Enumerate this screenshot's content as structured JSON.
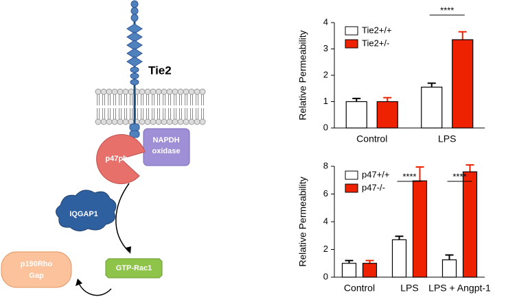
{
  "diagram": {
    "receptor": "Tie2",
    "oxidase": [
      "NAPDH",
      "oxidase"
    ],
    "p47": "p47phox",
    "iqgap": "IQGAP1",
    "rac": "GTP-Rac1",
    "gap": [
      "p190Rho",
      "Gap"
    ]
  },
  "chart_data": [
    {
      "type": "bar",
      "y_label": "Relative Permeability",
      "categories": [
        "Control",
        "LPS"
      ],
      "series": [
        {
          "name": "Tie2+/+",
          "color": "#ffffff",
          "values": [
            1.0,
            1.55
          ],
          "errors": [
            0.12,
            0.15
          ]
        },
        {
          "name": "Tie2+/-",
          "color": "#ee2200",
          "values": [
            1.0,
            3.35
          ],
          "errors": [
            0.15,
            0.3
          ]
        }
      ],
      "ylim": [
        0,
        4
      ],
      "yticks": [
        0,
        1,
        2,
        3,
        4
      ],
      "annotations": [
        "****"
      ]
    },
    {
      "type": "bar",
      "y_label": "Relative Permeability",
      "categories": [
        "Control",
        "LPS",
        "LPS + Angpt-1"
      ],
      "series": [
        {
          "name": "p47+/+",
          "color": "#ffffff",
          "values": [
            1.0,
            2.7,
            1.25
          ],
          "errors": [
            0.2,
            0.25,
            0.35
          ]
        },
        {
          "name": "p47-/-",
          "color": "#ee2200",
          "values": [
            1.0,
            6.95,
            7.6
          ],
          "errors": [
            0.2,
            1.0,
            0.5
          ]
        }
      ],
      "ylim": [
        0,
        8
      ],
      "yticks": [
        0,
        2,
        4,
        6,
        8
      ],
      "annotations": [
        "****",
        "****"
      ]
    }
  ]
}
